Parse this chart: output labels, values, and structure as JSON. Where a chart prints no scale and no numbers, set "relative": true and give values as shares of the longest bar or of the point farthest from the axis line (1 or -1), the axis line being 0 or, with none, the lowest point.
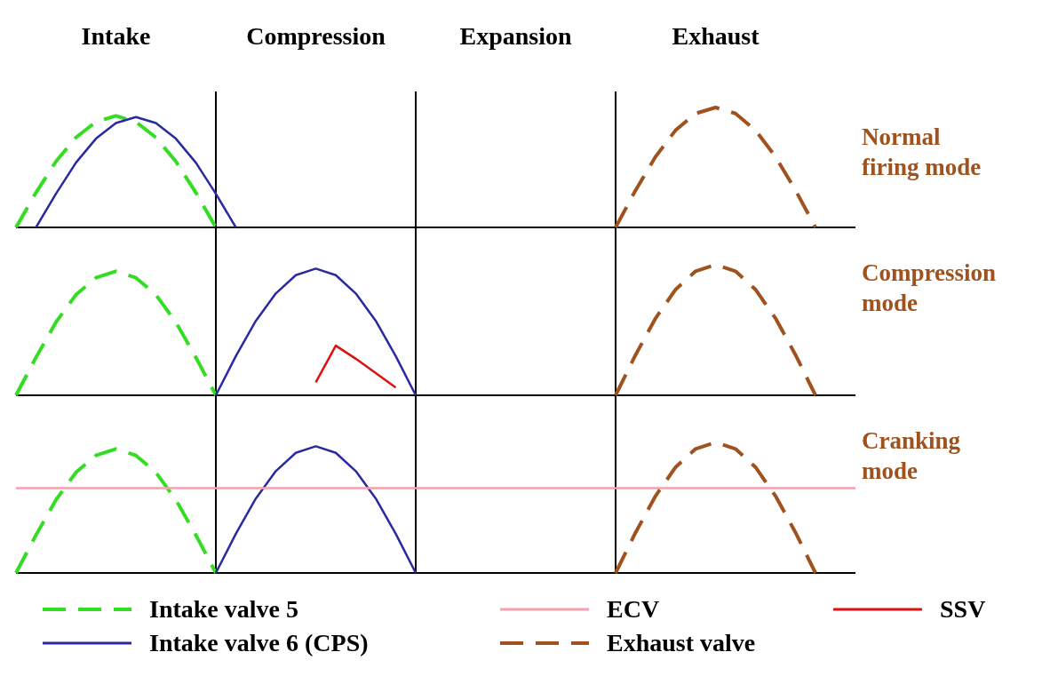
{
  "chart_data": [
    {
      "type": "line",
      "title": "Normal firing mode",
      "relative": true,
      "categories": [
        null,
        null,
        null,
        null,
        null,
        "Intake",
        null,
        null,
        null,
        null,
        null,
        null,
        null,
        null,
        null,
        "Compression",
        null,
        null,
        null,
        null,
        null,
        null,
        null,
        null,
        null,
        "Expansion",
        null,
        null,
        null,
        null,
        null,
        null,
        null,
        null,
        null,
        "Exhaust",
        null,
        null,
        null,
        null,
        null,
        null,
        null
      ],
      "tick_labels": "x",
      "grid": "x",
      "legend": "bottom",
      "series": [
        {
          "name": "Intake valve 5",
          "color": "#33dd22",
          "line_style": "dashed",
          "values": [
            0,
            0.29,
            0.55,
            0.75,
            0.88,
            0.93,
            0.88,
            0.75,
            0.55,
            0.29,
            0,
            null,
            null,
            null,
            null,
            null,
            null,
            null,
            null,
            null,
            null,
            null,
            null,
            null,
            null,
            null,
            null,
            null,
            null,
            null,
            null,
            null,
            null,
            null,
            null,
            null,
            null,
            null,
            null,
            null,
            null,
            null,
            null
          ]
        },
        {
          "name": "Intake valve 6 (CPS)",
          "color": "#2a2aa0",
          "line_style": "solid",
          "values": [
            null,
            0,
            0.28,
            0.54,
            0.74,
            0.87,
            0.92,
            0.87,
            0.74,
            0.54,
            0.28,
            0,
            null,
            null,
            null,
            null,
            null,
            null,
            null,
            null,
            null,
            null,
            null,
            null,
            null,
            null,
            null,
            null,
            null,
            null,
            null,
            null,
            null,
            null,
            null,
            null,
            null,
            null,
            null,
            null,
            null,
            null,
            null
          ]
        },
        {
          "name": "Exhaust valve",
          "color": "#a0521e",
          "line_style": "dashed",
          "values": [
            null,
            null,
            null,
            null,
            null,
            null,
            null,
            null,
            null,
            null,
            null,
            null,
            null,
            null,
            null,
            null,
            null,
            null,
            null,
            null,
            null,
            null,
            null,
            null,
            null,
            null,
            null,
            null,
            null,
            null,
            0,
            0.31,
            0.59,
            0.81,
            0.95,
            1,
            0.95,
            0.81,
            0.59,
            0.31,
            0,
            null,
            null
          ]
        }
      ]
    },
    {
      "type": "line",
      "title": "Compression mode",
      "relative": true,
      "categories": [
        null,
        null,
        null,
        null,
        null,
        "Intake",
        null,
        null,
        null,
        null,
        null,
        null,
        null,
        null,
        null,
        "Compression",
        null,
        null,
        null,
        null,
        null,
        null,
        null,
        null,
        null,
        "Expansion",
        null,
        null,
        null,
        null,
        null,
        null,
        null,
        null,
        null,
        "Exhaust",
        null,
        null,
        null,
        null,
        null,
        null,
        null
      ],
      "tick_labels": false,
      "grid": "x",
      "legend": "bottom",
      "series": [
        {
          "name": "Intake valve 5",
          "color": "#33dd22",
          "line_style": "dashed",
          "values": [
            0,
            0.29,
            0.56,
            0.77,
            0.9,
            0.95,
            0.9,
            0.77,
            0.56,
            0.29,
            0,
            null,
            null,
            null,
            null,
            null,
            null,
            null,
            null,
            null,
            null,
            null,
            null,
            null,
            null,
            null,
            null,
            null,
            null,
            null,
            null,
            null,
            null,
            null,
            null,
            null,
            null,
            null,
            null,
            null,
            null,
            null,
            null
          ]
        },
        {
          "name": "Intake valve 6 (CPS)",
          "color": "#2a2aa0",
          "line_style": "solid",
          "values": [
            null,
            null,
            null,
            null,
            null,
            null,
            null,
            null,
            null,
            null,
            0,
            0.3,
            0.57,
            0.78,
            0.92,
            0.97,
            0.92,
            0.78,
            0.57,
            0.3,
            0,
            null,
            null,
            null,
            null,
            null,
            null,
            null,
            null,
            null,
            null,
            null,
            null,
            null,
            null,
            null,
            null,
            null,
            null,
            null,
            null,
            null,
            null
          ]
        },
        {
          "name": "SSV",
          "color": "#e01010",
          "line_style": "solid",
          "values": [
            null,
            null,
            null,
            null,
            null,
            null,
            null,
            null,
            null,
            null,
            null,
            null,
            null,
            null,
            null,
            0.1,
            0.38,
            0.28,
            0.17,
            0.06,
            null,
            null,
            null,
            null,
            null,
            null,
            null,
            null,
            null,
            null,
            null,
            null,
            null,
            null,
            null,
            null,
            null,
            null,
            null,
            null,
            null,
            null,
            null
          ]
        },
        {
          "name": "Exhaust valve",
          "color": "#a0521e",
          "line_style": "dashed",
          "values": [
            null,
            null,
            null,
            null,
            null,
            null,
            null,
            null,
            null,
            null,
            null,
            null,
            null,
            null,
            null,
            null,
            null,
            null,
            null,
            null,
            null,
            null,
            null,
            null,
            null,
            null,
            null,
            null,
            null,
            null,
            0,
            0.31,
            0.59,
            0.81,
            0.95,
            1,
            0.95,
            0.81,
            0.59,
            0.31,
            0,
            null,
            null
          ]
        }
      ]
    },
    {
      "type": "line",
      "title": "Cranking mode",
      "relative": true,
      "categories": [
        null,
        null,
        null,
        null,
        null,
        "Intake",
        null,
        null,
        null,
        null,
        null,
        null,
        null,
        null,
        null,
        "Compression",
        null,
        null,
        null,
        null,
        null,
        null,
        null,
        null,
        null,
        "Expansion",
        null,
        null,
        null,
        null,
        null,
        null,
        null,
        null,
        null,
        "Exhaust",
        null,
        null,
        null,
        null,
        null,
        null,
        null
      ],
      "tick_labels": false,
      "grid": "x",
      "legend": "bottom",
      "series": [
        {
          "name": "Intake valve 5",
          "color": "#33dd22",
          "line_style": "dashed",
          "values": [
            0,
            0.29,
            0.56,
            0.77,
            0.9,
            0.95,
            0.9,
            0.77,
            0.56,
            0.29,
            0,
            null,
            null,
            null,
            null,
            null,
            null,
            null,
            null,
            null,
            null,
            null,
            null,
            null,
            null,
            null,
            null,
            null,
            null,
            null,
            null,
            null,
            null,
            null,
            null,
            null,
            null,
            null,
            null,
            null,
            null,
            null,
            null
          ]
        },
        {
          "name": "Intake valve 6 (CPS)",
          "color": "#2a2aa0",
          "line_style": "solid",
          "values": [
            null,
            null,
            null,
            null,
            null,
            null,
            null,
            null,
            null,
            null,
            0,
            0.3,
            0.57,
            0.78,
            0.92,
            0.97,
            0.92,
            0.78,
            0.57,
            0.3,
            0,
            null,
            null,
            null,
            null,
            null,
            null,
            null,
            null,
            null,
            null,
            null,
            null,
            null,
            null,
            null,
            null,
            null,
            null,
            null,
            null,
            null,
            null
          ]
        },
        {
          "name": "ECV",
          "color": "#f4a0b0",
          "line_style": "solid",
          "values": [
            0.65,
            0.65,
            0.65,
            0.65,
            0.65,
            0.65,
            0.65,
            0.65,
            0.65,
            0.65,
            0.65,
            0.65,
            0.65,
            0.65,
            0.65,
            0.65,
            0.65,
            0.65,
            0.65,
            0.65,
            0.65,
            0.65,
            0.65,
            0.65,
            0.65,
            0.65,
            0.65,
            0.65,
            0.65,
            0.65,
            0.65,
            0.65,
            0.65,
            0.65,
            0.65,
            0.65,
            0.65,
            0.65,
            0.65,
            0.65,
            0.65,
            0.65,
            0.65
          ]
        },
        {
          "name": "Exhaust valve",
          "color": "#a0521e",
          "line_style": "dashed",
          "values": [
            null,
            null,
            null,
            null,
            null,
            null,
            null,
            null,
            null,
            null,
            null,
            null,
            null,
            null,
            null,
            null,
            null,
            null,
            null,
            null,
            null,
            null,
            null,
            null,
            null,
            null,
            null,
            null,
            null,
            null,
            0,
            0.31,
            0.59,
            0.81,
            0.95,
            1,
            0.95,
            0.81,
            0.59,
            0.31,
            0,
            null,
            null
          ]
        }
      ]
    }
  ]
}
